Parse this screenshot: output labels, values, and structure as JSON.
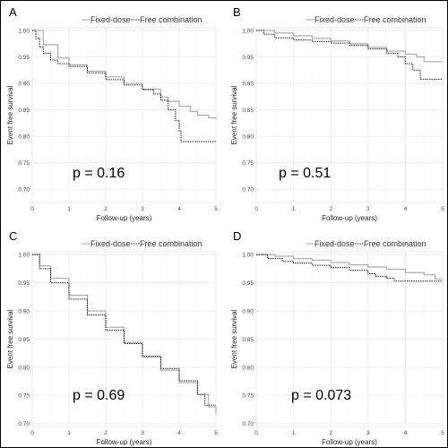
{
  "colors": {
    "fixed_dose": "#aaaaaa",
    "free_combination": "#222222",
    "grid": "#eaeaea"
  },
  "chart_data": [
    {
      "type": "line",
      "panel": "A",
      "legend": [
        "Fixed-dose",
        "Free combination"
      ],
      "xlabel": "Follow-up (years)",
      "ylabel": "Event free survival",
      "xlim": [
        0,
        5
      ],
      "ylim": [
        0.675,
        1.005
      ],
      "xticks": [
        0,
        1,
        2,
        3,
        4,
        5
      ],
      "yticks": [
        0.7,
        0.75,
        0.8,
        0.85,
        0.9,
        0.95,
        1.0
      ],
      "annotation": "p = 0.16",
      "series": [
        {
          "name": "Fixed-dose",
          "x": [
            0,
            0.3,
            0.7,
            1.0,
            1.5,
            2.0,
            2.5,
            3.0,
            3.5,
            3.7,
            4.0,
            4.3,
            4.5,
            4.8,
            5.0
          ],
          "y": [
            1.0,
            0.973,
            0.948,
            0.935,
            0.923,
            0.912,
            0.9,
            0.889,
            0.874,
            0.866,
            0.857,
            0.847,
            0.84,
            0.835,
            0.832
          ]
        },
        {
          "name": "Free combination",
          "x": [
            0,
            0.1,
            0.2,
            0.3,
            0.5,
            0.7,
            1.0,
            1.5,
            2.0,
            2.5,
            3.0,
            3.3,
            3.5,
            3.7,
            3.9,
            4.0,
            4.05,
            4.5,
            5.0
          ],
          "y": [
            1.0,
            0.985,
            0.968,
            0.957,
            0.944,
            0.937,
            0.932,
            0.92,
            0.907,
            0.897,
            0.888,
            0.88,
            0.868,
            0.85,
            0.83,
            0.81,
            0.79,
            0.79,
            0.79
          ]
        }
      ]
    },
    {
      "type": "line",
      "panel": "B",
      "legend": [
        "Fixed-dose",
        "Free combination"
      ],
      "xlabel": "Follow-up (years)",
      "ylabel": "Event free survival",
      "xlim": [
        0,
        5
      ],
      "ylim": [
        0.675,
        1.005
      ],
      "xticks": [
        0,
        1,
        2,
        3,
        4,
        5
      ],
      "yticks": [
        0.7,
        0.75,
        0.8,
        0.85,
        0.9,
        0.95,
        1.0
      ],
      "annotation": "p = 0.51",
      "series": [
        {
          "name": "Fixed-dose",
          "x": [
            0,
            0.5,
            1.0,
            1.5,
            2.0,
            2.5,
            3.0,
            3.5,
            4.0,
            4.3,
            4.5,
            5.0
          ],
          "y": [
            1.0,
            0.995,
            0.99,
            0.985,
            0.98,
            0.975,
            0.968,
            0.961,
            0.955,
            0.95,
            0.941,
            0.941
          ]
        },
        {
          "name": "Free combination",
          "x": [
            0,
            0.2,
            0.5,
            1.0,
            1.5,
            2.0,
            2.5,
            3.0,
            3.5,
            3.8,
            4.0,
            4.2,
            4.4,
            5.0
          ],
          "y": [
            1.0,
            0.993,
            0.986,
            0.982,
            0.979,
            0.976,
            0.972,
            0.965,
            0.957,
            0.95,
            0.937,
            0.925,
            0.908,
            0.908
          ]
        }
      ]
    },
    {
      "type": "line",
      "panel": "C",
      "legend": [
        "Fixed-dose",
        "Free combination"
      ],
      "xlabel": "Follow-up (years)",
      "ylabel": "Event free survival",
      "xlim": [
        0,
        5
      ],
      "ylim": [
        0.695,
        1.005
      ],
      "xticks": [
        0,
        1,
        2,
        3,
        4,
        5
      ],
      "yticks": [
        0.7,
        0.75,
        0.8,
        0.85,
        0.9,
        0.95,
        1.0
      ],
      "annotation": "p = 0.69",
      "series": [
        {
          "name": "Fixed-dose",
          "x": [
            0,
            0.2,
            0.5,
            1.0,
            1.5,
            2.0,
            2.5,
            3.0,
            3.5,
            4.0,
            4.5,
            4.8,
            5.0
          ],
          "y": [
            1.0,
            0.98,
            0.958,
            0.928,
            0.9,
            0.871,
            0.844,
            0.818,
            0.795,
            0.773,
            0.752,
            0.73,
            0.718
          ]
        },
        {
          "name": "Free combination",
          "x": [
            0,
            0.2,
            0.5,
            1.0,
            1.5,
            2.0,
            2.5,
            3.0,
            3.5,
            4.0,
            4.5,
            4.7,
            5.0
          ],
          "y": [
            1.0,
            0.975,
            0.95,
            0.921,
            0.893,
            0.866,
            0.842,
            0.82,
            0.798,
            0.776,
            0.752,
            0.733,
            0.733
          ]
        }
      ]
    },
    {
      "type": "line",
      "panel": "D",
      "legend": [
        "Fixed-dose",
        "Free combination"
      ],
      "xlabel": "Follow-up (years)",
      "ylabel": "Event free survival",
      "xlim": [
        0,
        5
      ],
      "ylim": [
        0.695,
        1.005
      ],
      "xticks": [
        0,
        1,
        2,
        3,
        4,
        5
      ],
      "yticks": [
        0.7,
        0.75,
        0.8,
        0.85,
        0.9,
        0.95,
        1.0
      ],
      "annotation": "p = 0.073",
      "series": [
        {
          "name": "Fixed-dose",
          "x": [
            0,
            0.5,
            1.0,
            1.5,
            2.0,
            2.5,
            3.0,
            3.5,
            4.0,
            4.5,
            4.8,
            5.0
          ],
          "y": [
            1.0,
            0.997,
            0.993,
            0.99,
            0.986,
            0.982,
            0.978,
            0.974,
            0.968,
            0.964,
            0.957,
            0.957
          ]
        },
        {
          "name": "Free combination",
          "x": [
            0,
            0.3,
            0.7,
            1.0,
            1.5,
            2.0,
            2.5,
            3.0,
            3.2,
            3.5,
            3.7,
            4.0,
            4.5,
            5.0
          ],
          "y": [
            1.0,
            0.993,
            0.988,
            0.985,
            0.981,
            0.977,
            0.972,
            0.966,
            0.961,
            0.958,
            0.953,
            0.953,
            0.953,
            0.953
          ]
        }
      ]
    }
  ]
}
